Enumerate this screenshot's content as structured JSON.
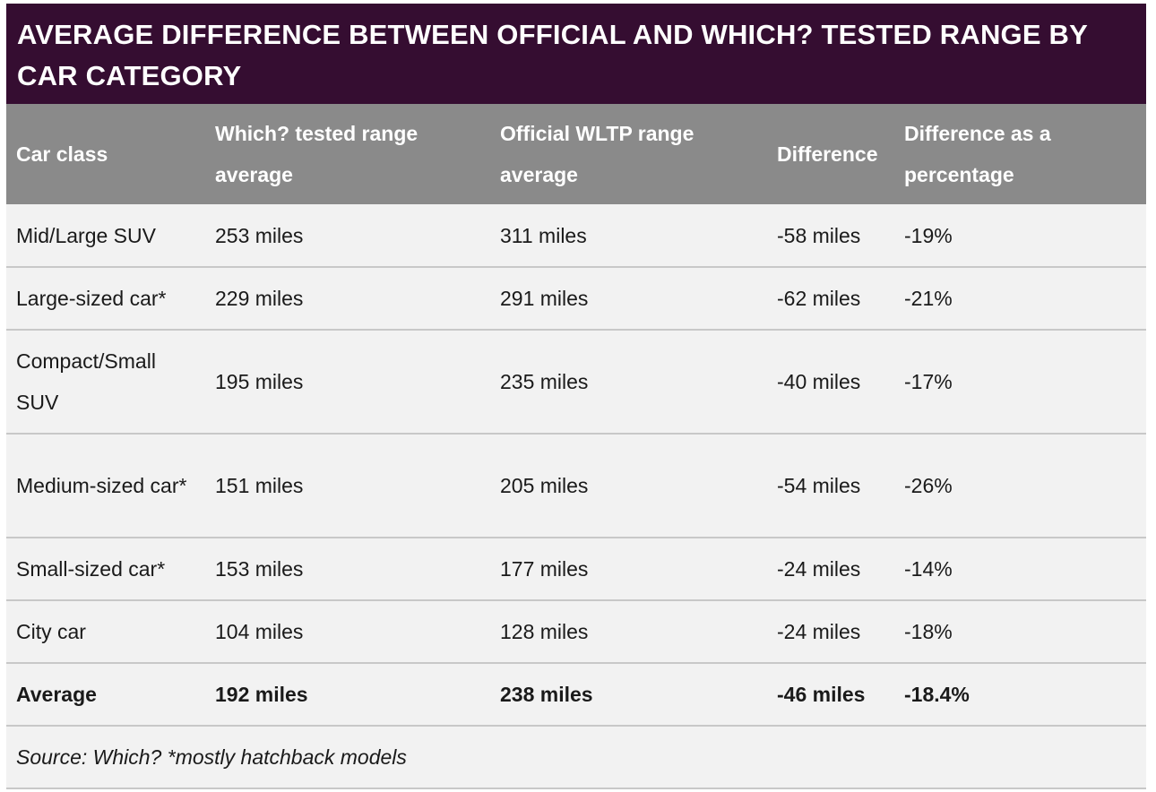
{
  "title": "AVERAGE DIFFERENCE BETWEEN OFFICIAL AND WHICH? TESTED RANGE BY CAR CATEGORY",
  "header": {
    "col1": "Car class",
    "col2": "Which? tested range average",
    "col3": "Official WLTP range average",
    "col4": "Difference",
    "col5": "Difference as a percentage"
  },
  "rows": [
    {
      "car_class": "Mid/Large SUV",
      "tested": "253 miles",
      "official": "311 miles",
      "difference": "-58 miles",
      "percentage": "-19%"
    },
    {
      "car_class": "Large-sized car*",
      "tested": "229 miles",
      "official": "291 miles",
      "difference": "-62 miles",
      "percentage": "-21%"
    },
    {
      "car_class": "Compact/Small SUV",
      "tested": "195 miles",
      "official": "235 miles",
      "difference": "-40 miles",
      "percentage": "-17%"
    },
    {
      "car_class": "Medium-sized car*",
      "tested": "151 miles",
      "official": "205 miles",
      "difference": "-54 miles",
      "percentage": "-26%"
    },
    {
      "car_class": "Small-sized car*",
      "tested": "153 miles",
      "official": "177 miles",
      "difference": "-24 miles",
      "percentage": "-14%"
    },
    {
      "car_class": "City car",
      "tested": "104 miles",
      "official": "128 miles",
      "difference": "-24 miles",
      "percentage": "-18%"
    }
  ],
  "average": {
    "car_class": "Average",
    "tested": "192 miles",
    "official": "238 miles",
    "difference": "-46 miles",
    "percentage": "-18.4%"
  },
  "source": "Source: Which? *mostly hatchback models",
  "colors": {
    "title_background": "#350d31",
    "header_background": "#8a8a8a",
    "row_background": "#f2f2f2",
    "row_border": "#c8c8c8"
  }
}
